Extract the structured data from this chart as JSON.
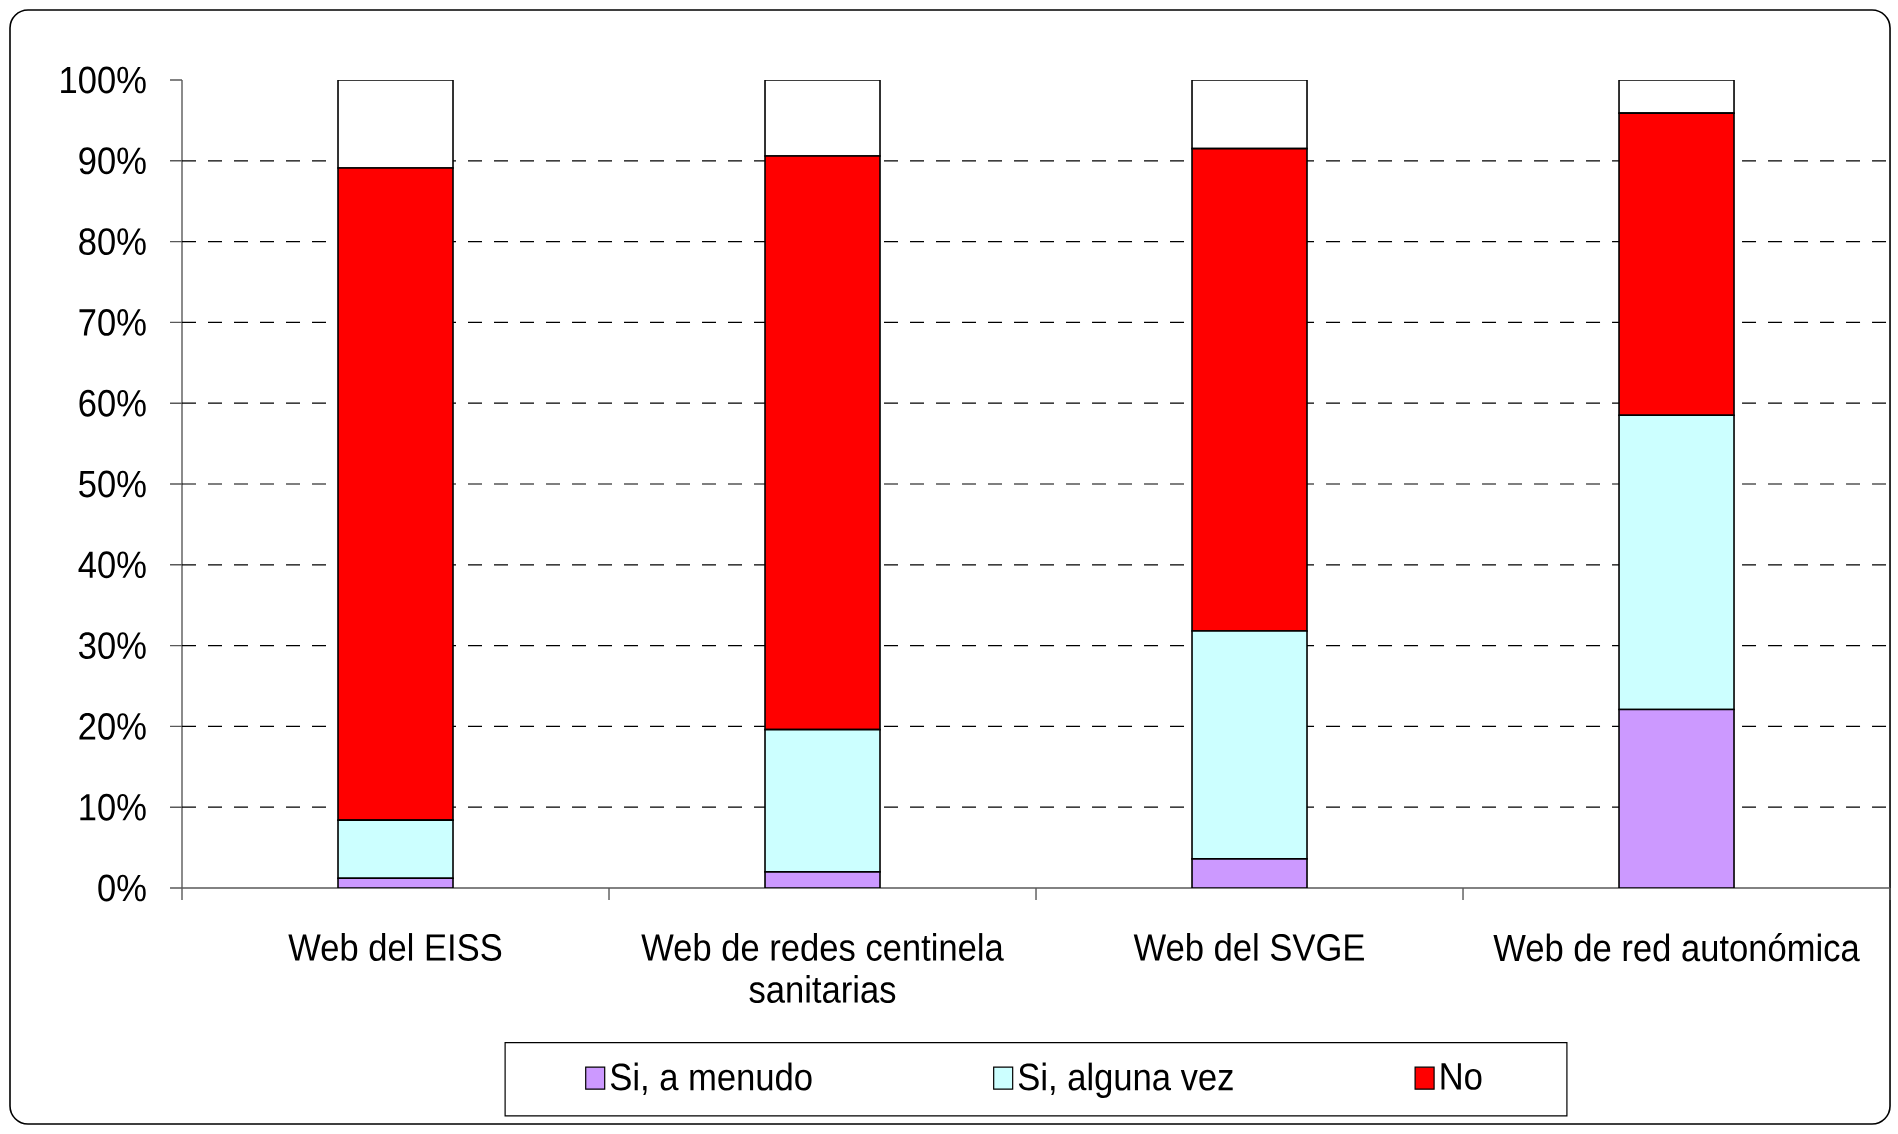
{
  "chart_data": {
    "type": "bar",
    "stacked": true,
    "categories": [
      "Web del EISS",
      "Web de redes centinela sanitarias",
      "Web del SVGE",
      "Web de red autonómica"
    ],
    "series": [
      {
        "name": "Si, a menudo",
        "color": "#cc99ff",
        "values": [
          1.2,
          2.0,
          3.6,
          22.1
        ]
      },
      {
        "name": "Si, alguna vez",
        "color": "#ccffff",
        "values": [
          7.2,
          17.6,
          28.2,
          36.4
        ]
      },
      {
        "name": "No",
        "color": "#ff0000",
        "values": [
          80.7,
          71.0,
          59.7,
          37.4
        ]
      },
      {
        "color": "#ffffff",
        "values": [
          10.9,
          9.4,
          8.5,
          4.1
        ]
      }
    ],
    "ylim": [
      0,
      100
    ],
    "yticks": [
      {
        "value": 0,
        "label": "0%"
      },
      {
        "value": 10,
        "label": "10%"
      },
      {
        "value": 20,
        "label": "20%"
      },
      {
        "value": 30,
        "label": "30%"
      },
      {
        "value": 40,
        "label": "40%"
      },
      {
        "value": 50,
        "label": "50%"
      },
      {
        "value": 60,
        "label": "60%"
      },
      {
        "value": 70,
        "label": "70%"
      },
      {
        "value": 80,
        "label": "80%"
      },
      {
        "value": 90,
        "label": "90%"
      },
      {
        "value": 100,
        "label": "100%"
      }
    ],
    "grid": "y",
    "legend": "bottom"
  }
}
